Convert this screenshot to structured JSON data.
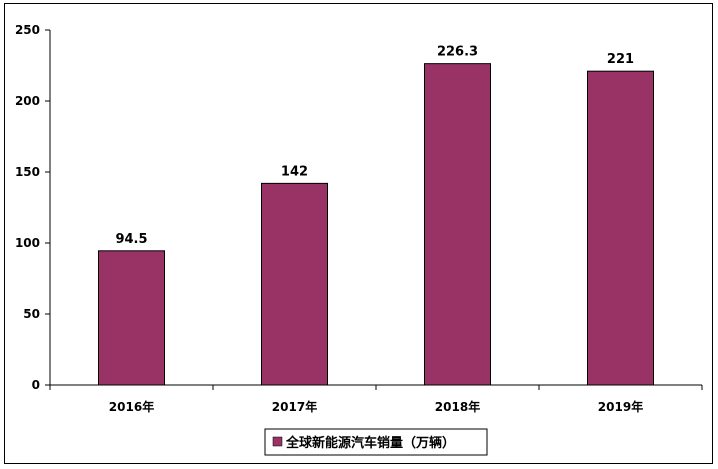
{
  "chart_data": {
    "type": "bar",
    "categories": [
      "2016年",
      "2017年",
      "2018年",
      "2019年"
    ],
    "series": [
      {
        "name": "全球新能源汽车销量（万辆）",
        "values": [
          94.5,
          142,
          226.3,
          221
        ],
        "color": "#993366"
      }
    ],
    "data_labels": [
      "94.5",
      "142",
      "226.3",
      "221"
    ],
    "yticks": [
      "0",
      "50",
      "100",
      "150",
      "200",
      "250"
    ],
    "ylim": [
      0,
      250
    ],
    "title": "",
    "xlabel": "",
    "ylabel": "",
    "grid": false,
    "legend_position": "bottom-center"
  }
}
